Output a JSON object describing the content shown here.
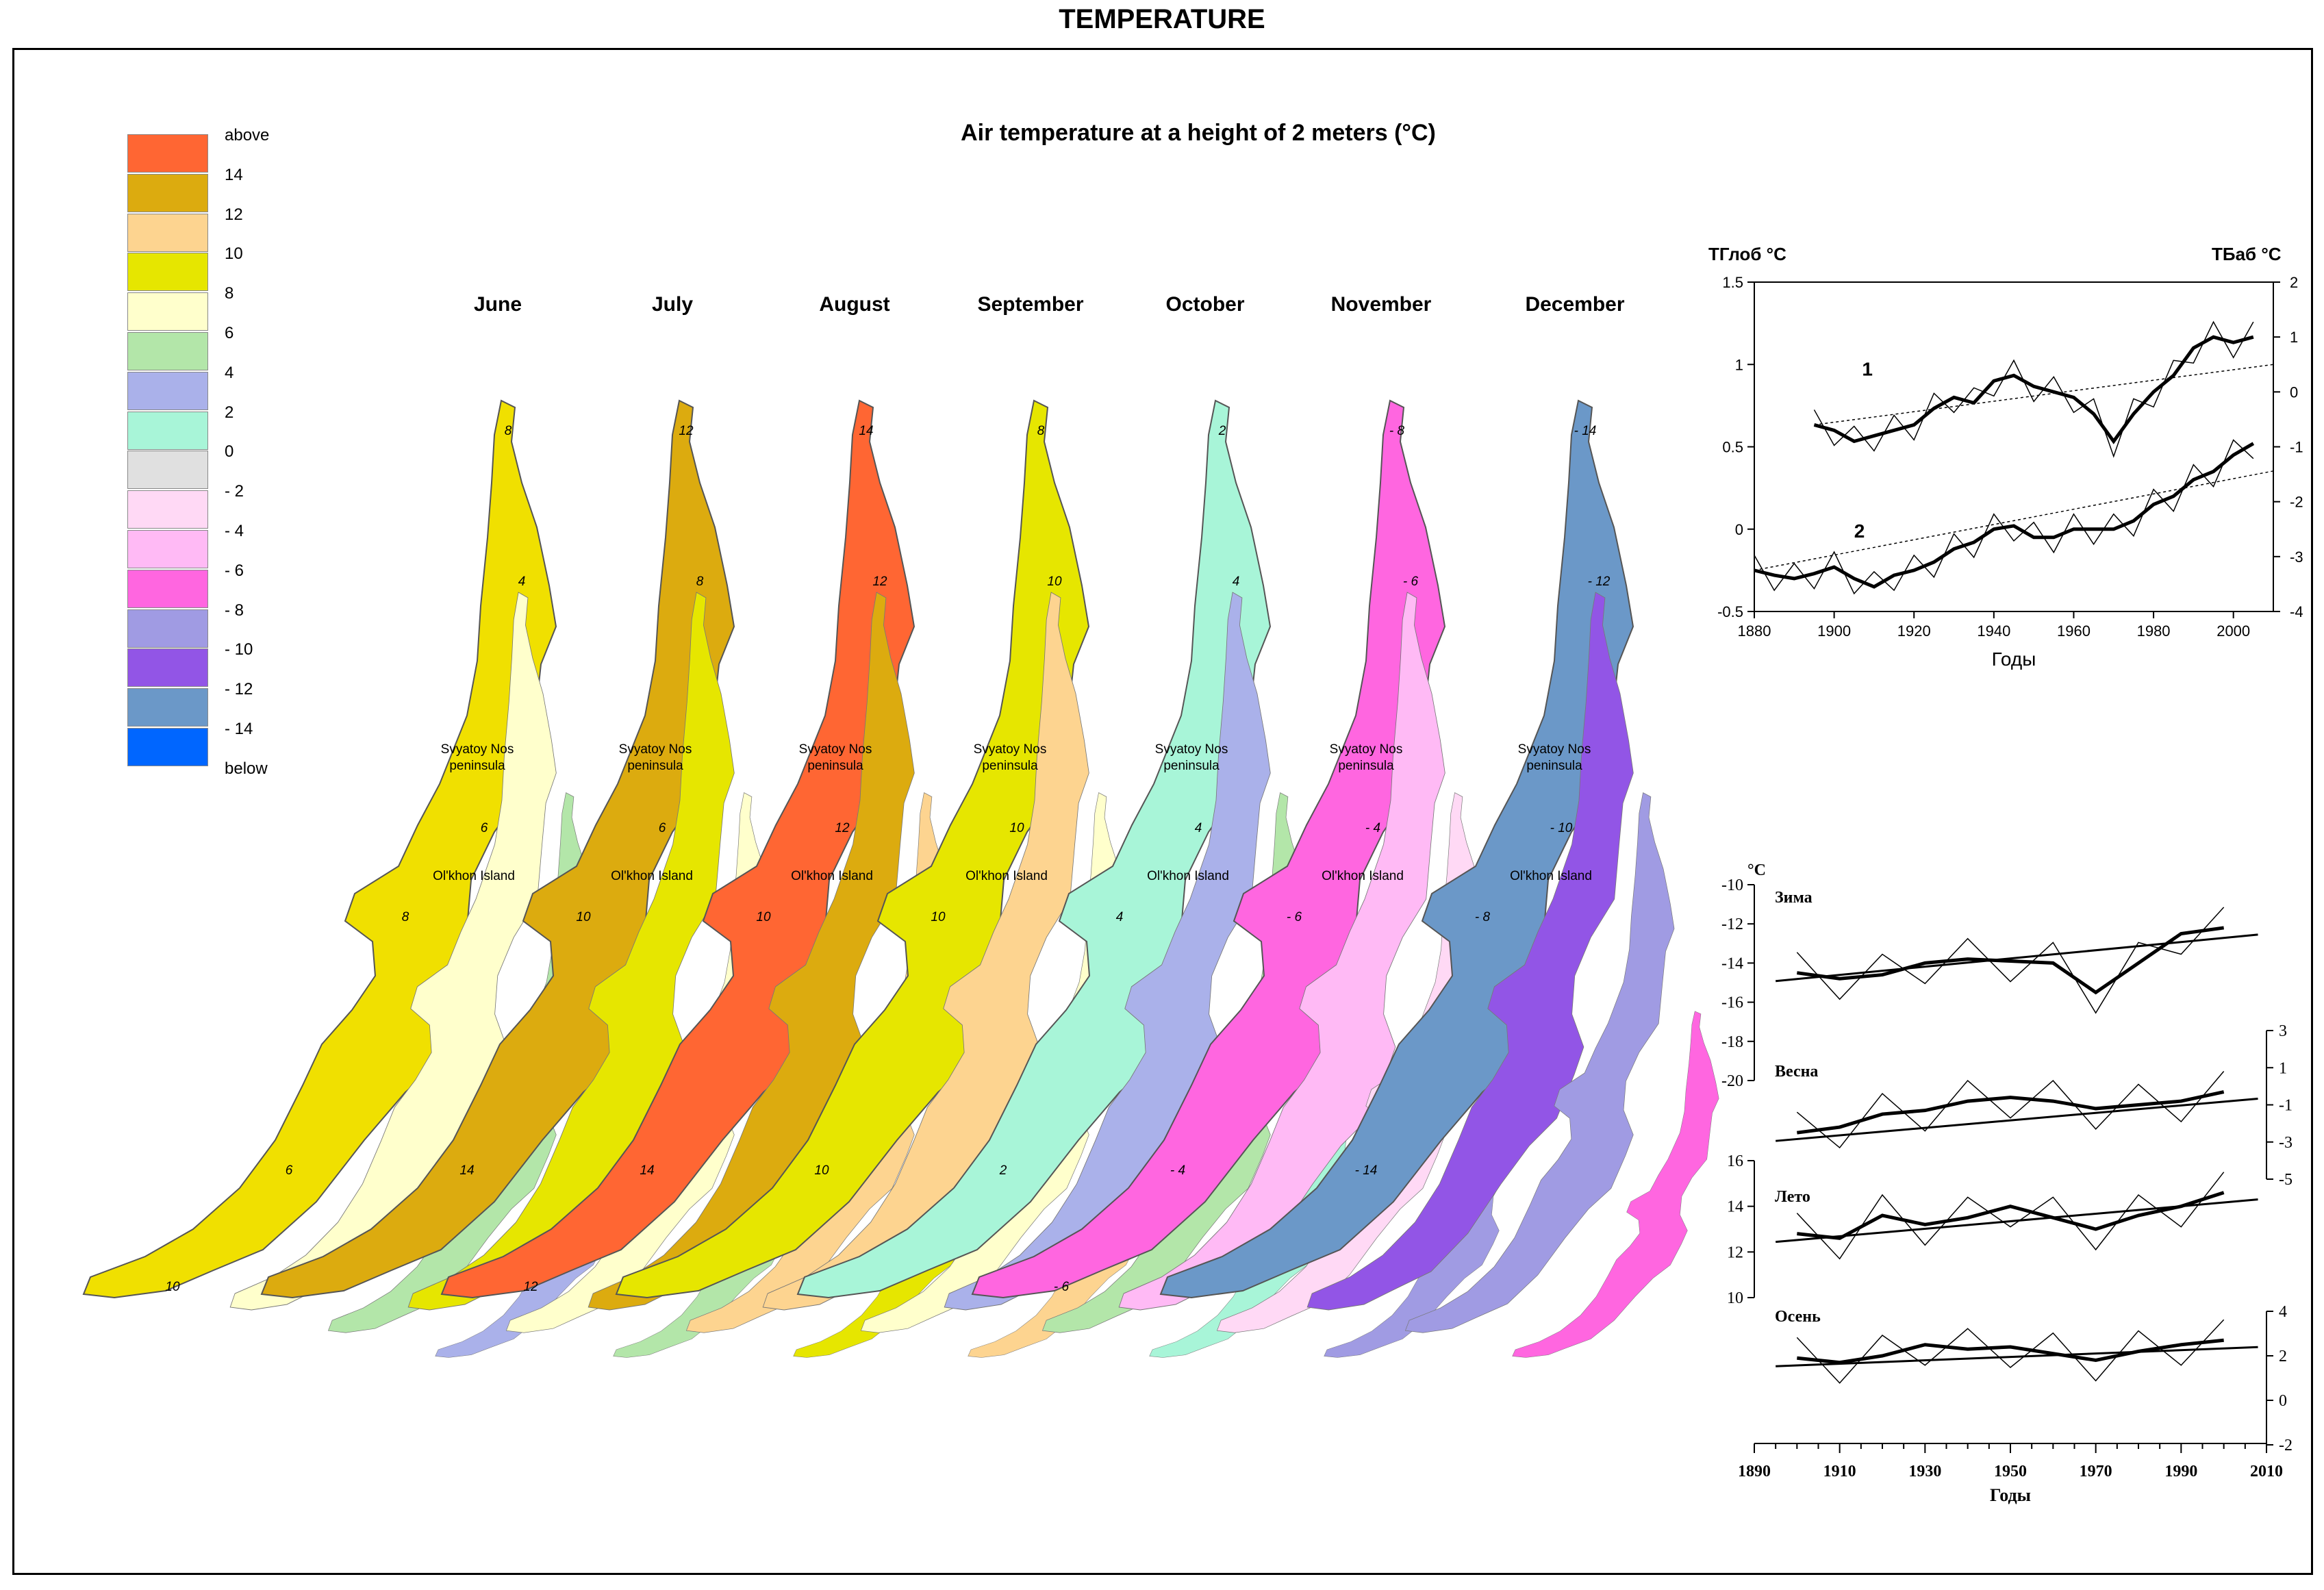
{
  "page_title": "TEMPERATURE",
  "map_title": "Air temperature at a height of 2 meters (°C)",
  "legend": [
    {
      "label": "above",
      "color": "#ff6633"
    },
    {
      "label": "14",
      "color": "#dcab0f"
    },
    {
      "label": "12",
      "color": "#fdd490"
    },
    {
      "label": "10",
      "color": "#e6e600"
    },
    {
      "label": "8",
      "color": "#ffffcc"
    },
    {
      "label": "6",
      "color": "#b3e6a9"
    },
    {
      "label": "4",
      "color": "#aab1ea"
    },
    {
      "label": "2",
      "color": "#a8f5d8"
    },
    {
      "label": "0",
      "color": "#e0e0e0"
    },
    {
      "label": "- 2",
      "color": "#ffd9f5"
    },
    {
      "label": "- 4",
      "color": "#ffbaf5"
    },
    {
      "label": "- 6",
      "color": "#ff66e0"
    },
    {
      "label": "- 8",
      "color": "#a09be3"
    },
    {
      "label": "- 10",
      "color": "#9255e6"
    },
    {
      "label": "- 12",
      "color": "#6b98c8"
    },
    {
      "label": "- 14",
      "color": "#0066ff"
    },
    {
      "label": "below",
      "color": ""
    }
  ],
  "place_labels": {
    "peninsula_line1": "Svyatoy Nos",
    "peninsula_line2": "peninsula",
    "island": "Ol'khon Island"
  },
  "months": [
    {
      "name": "June",
      "zones": [
        "#f0e000",
        "#ffffcc",
        "#b3e6a9",
        "#aab1ea"
      ],
      "labels": [
        "8",
        "4",
        "6",
        "8",
        "6",
        "10"
      ]
    },
    {
      "name": "July",
      "zones": [
        "#dcab0f",
        "#e6e600",
        "#ffffcc",
        "#b3e6a9"
      ],
      "labels": [
        "12",
        "8",
        "6",
        "10",
        "14"
      ]
    },
    {
      "name": "August",
      "zones": [
        "#ff6633",
        "#dcab0f",
        "#fdd490",
        "#e6e600"
      ],
      "labels": [
        "14",
        "12",
        "12",
        "10",
        "14",
        "12"
      ]
    },
    {
      "name": "September",
      "zones": [
        "#e6e600",
        "#fdd490",
        "#ffffcc",
        "#fdd490"
      ],
      "labels": [
        "8",
        "10",
        "10",
        "10",
        "10"
      ]
    },
    {
      "name": "October",
      "zones": [
        "#a8f5d8",
        "#aab1ea",
        "#b3e6a9",
        "#a8f5d8"
      ],
      "labels": [
        "2",
        "4",
        "4",
        "4",
        "2"
      ]
    },
    {
      "name": "November",
      "zones": [
        "#ff66e0",
        "#ffbaf5",
        "#ffd9f5",
        "#a09be3"
      ],
      "labels": [
        "- 8",
        "- 6",
        "- 4",
        "- 6",
        "- 4",
        "- 6"
      ]
    },
    {
      "name": "December",
      "zones": [
        "#6b98c8",
        "#9255e6",
        "#a09be3",
        "#ff66e0"
      ],
      "labels": [
        "- 14",
        "- 12",
        "- 10",
        "- 8",
        "- 14"
      ]
    }
  ],
  "chart_data": [
    {
      "type": "line",
      "title": "",
      "xlabel": "Годы",
      "ylabel_left": "TГлоб  °C",
      "ylabel_right": "TБаб  °C",
      "xlim": [
        1880,
        2010
      ],
      "ylim_left": [
        -0.5,
        1.5
      ],
      "ylim_right": [
        -4,
        2
      ],
      "x_ticks": [
        "1880",
        "1900",
        "1920",
        "1940",
        "1960",
        "1980",
        "2000"
      ],
      "y_ticks_left": [
        "1.5",
        "1",
        "0.5",
        "0",
        "-0.5"
      ],
      "y_ticks_right": [
        "2",
        "1",
        "0",
        "-1",
        "-2",
        "-3",
        "-4"
      ],
      "series": [
        {
          "name": "1",
          "axis": "right",
          "x": [
            1895,
            1900,
            1905,
            1910,
            1915,
            1920,
            1925,
            1930,
            1935,
            1940,
            1945,
            1950,
            1955,
            1960,
            1965,
            1970,
            1975,
            1980,
            1985,
            1990,
            1995,
            2000,
            2005
          ],
          "values": [
            -0.6,
            -0.7,
            -0.9,
            -0.8,
            -0.7,
            -0.6,
            -0.3,
            -0.1,
            -0.2,
            0.2,
            0.3,
            0.1,
            0.0,
            -0.1,
            -0.4,
            -0.9,
            -0.4,
            0.0,
            0.3,
            0.8,
            1.0,
            0.9,
            1.0
          ]
        },
        {
          "name": "2",
          "axis": "left",
          "x": [
            1880,
            1885,
            1890,
            1895,
            1900,
            1905,
            1910,
            1915,
            1920,
            1925,
            1930,
            1935,
            1940,
            1945,
            1950,
            1955,
            1960,
            1965,
            1970,
            1975,
            1980,
            1985,
            1990,
            1995,
            2000,
            2005
          ],
          "values": [
            -0.25,
            -0.28,
            -0.3,
            -0.27,
            -0.23,
            -0.3,
            -0.35,
            -0.28,
            -0.25,
            -0.2,
            -0.12,
            -0.08,
            0.0,
            0.02,
            -0.05,
            -0.05,
            0.0,
            0.0,
            0.0,
            0.05,
            0.15,
            0.2,
            0.3,
            0.35,
            0.45,
            0.52
          ]
        }
      ]
    },
    {
      "type": "line",
      "title": "",
      "xlabel": "Годы",
      "ylabel": "°C",
      "xlim": [
        1890,
        2010
      ],
      "x_ticks": [
        "1890",
        "1910",
        "1930",
        "1950",
        "1970",
        "1990",
        "2010"
      ],
      "panels": [
        {
          "name": "Зима",
          "ylim": [
            -20,
            -10
          ],
          "y_ticks": [
            "-10",
            "-12",
            "-14",
            "-16",
            "-18",
            "-20"
          ],
          "x": [
            1900,
            1910,
            1920,
            1930,
            1940,
            1950,
            1960,
            1970,
            1980,
            1990,
            2000
          ],
          "values": [
            -14.5,
            -14.8,
            -14.6,
            -14.0,
            -13.8,
            -13.9,
            -14.0,
            -15.5,
            -14.0,
            -12.5,
            -12.2
          ]
        },
        {
          "name": "Весна",
          "ylim": [
            -5,
            3
          ],
          "y_ticks": [
            "3",
            "1",
            "-1",
            "-3",
            "-5"
          ],
          "x": [
            1900,
            1910,
            1920,
            1930,
            1940,
            1950,
            1960,
            1970,
            1980,
            1990,
            2000
          ],
          "values": [
            -2.5,
            -2.2,
            -1.5,
            -1.3,
            -0.8,
            -0.6,
            -0.8,
            -1.2,
            -1.0,
            -0.8,
            -0.3
          ]
        },
        {
          "name": "Лето",
          "ylim": [
            10,
            16
          ],
          "y_ticks": [
            "16",
            "14",
            "12",
            "10"
          ],
          "x": [
            1900,
            1910,
            1920,
            1930,
            1940,
            1950,
            1960,
            1970,
            1980,
            1990,
            2000
          ],
          "values": [
            12.8,
            12.6,
            13.6,
            13.2,
            13.5,
            14.0,
            13.5,
            13.0,
            13.6,
            14.0,
            14.6
          ]
        },
        {
          "name": "Осень",
          "ylim": [
            -2,
            4
          ],
          "y_ticks": [
            "4",
            "2",
            "0",
            "-2"
          ],
          "x": [
            1900,
            1910,
            1920,
            1930,
            1940,
            1950,
            1960,
            1970,
            1980,
            1990,
            2000
          ],
          "values": [
            1.9,
            1.7,
            2.0,
            2.5,
            2.3,
            2.4,
            2.1,
            1.8,
            2.2,
            2.5,
            2.7
          ]
        }
      ]
    }
  ]
}
